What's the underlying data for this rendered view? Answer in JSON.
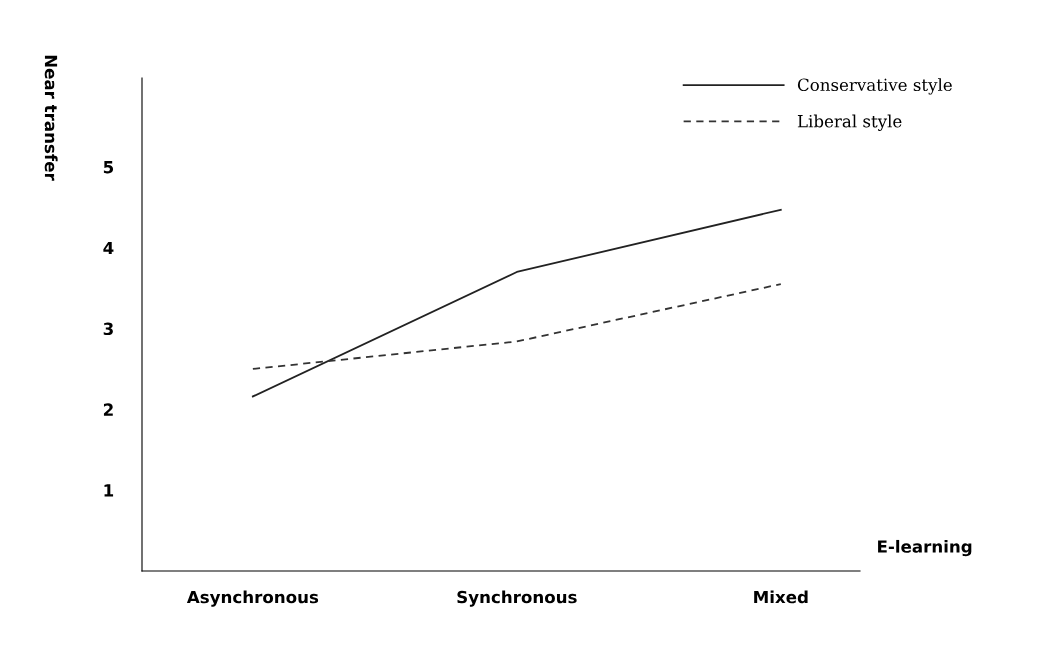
{
  "chart_data": {
    "type": "line",
    "xlabel": "E-learning",
    "ylabel": "Near transfer",
    "categories": [
      "Asynchronous",
      "Synchronous",
      "Mixed"
    ],
    "series": [
      {
        "name": "Conservative style",
        "color": "#222222",
        "values": [
          2.16,
          3.7,
          4.47
        ],
        "line_style": "solid"
      },
      {
        "name": "Liberal style",
        "color": "#333333",
        "values": [
          2.5,
          2.84,
          3.55
        ],
        "line_style": "dashed"
      }
    ],
    "ylim": [
      0,
      6.1
    ],
    "yticks": [
      1,
      2,
      3,
      4,
      5
    ],
    "grid": false,
    "legend": "top right",
    "marker": "none"
  }
}
